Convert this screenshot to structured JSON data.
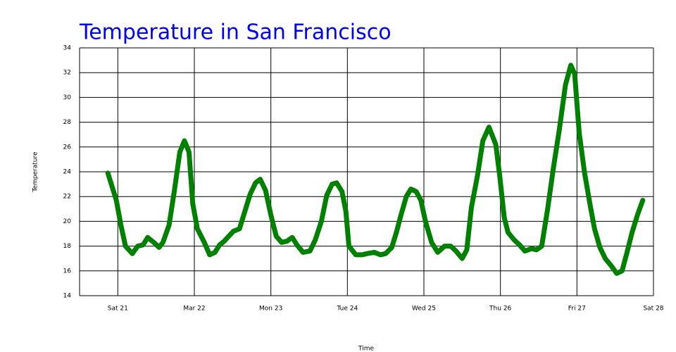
{
  "chart_data": {
    "type": "line",
    "title": "Temperature in San Francisco",
    "xlabel": "Time",
    "ylabel": "Temperature",
    "xlim": [
      20.5,
      28
    ],
    "xticks": [
      {
        "value": 21,
        "label": "Sat 21"
      },
      {
        "value": 22,
        "label": "Mar 22"
      },
      {
        "value": 23,
        "label": "Mon 23"
      },
      {
        "value": 24,
        "label": "Tue 24"
      },
      {
        "value": 25,
        "label": "Wed 25"
      },
      {
        "value": 26,
        "label": "Thu 26"
      },
      {
        "value": 27,
        "label": "Fri 27"
      },
      {
        "value": 28,
        "label": "Sat 28"
      }
    ],
    "ylim": [
      14,
      34
    ],
    "yticks": [
      14,
      16,
      18,
      20,
      22,
      24,
      26,
      28,
      30,
      32,
      34
    ],
    "grid": true,
    "x": [
      20.87,
      20.98,
      21.04,
      21.1,
      21.19,
      21.26,
      21.33,
      21.39,
      21.47,
      21.54,
      21.59,
      21.67,
      21.74,
      21.81,
      21.87,
      21.93,
      21.98,
      22.04,
      22.13,
      22.2,
      22.27,
      22.33,
      22.39,
      22.45,
      22.51,
      22.59,
      22.66,
      22.73,
      22.8,
      22.86,
      22.93,
      23.0,
      23.07,
      23.14,
      23.21,
      23.28,
      23.34,
      23.42,
      23.51,
      23.58,
      23.66,
      23.73,
      23.8,
      23.86,
      23.93,
      23.98,
      24.02,
      24.11,
      24.19,
      24.26,
      24.35,
      24.43,
      24.5,
      24.58,
      24.64,
      24.7,
      24.77,
      24.83,
      24.9,
      24.96,
      25.02,
      25.1,
      25.18,
      25.27,
      25.35,
      25.42,
      25.5,
      25.56,
      25.62,
      25.7,
      25.77,
      25.85,
      25.94,
      25.99,
      26.05,
      26.1,
      26.18,
      26.25,
      26.32,
      26.41,
      26.47,
      26.54,
      26.62,
      26.69,
      26.77,
      26.85,
      26.92,
      26.97,
      27.03,
      27.1,
      27.17,
      27.23,
      27.3,
      27.37,
      27.45,
      27.52,
      27.59,
      27.65,
      27.72,
      27.79,
      27.86
    ],
    "series": [
      {
        "name": "Temperature",
        "color": "#008000",
        "values": [
          23.9,
          21.7,
          19.7,
          18.0,
          17.4,
          18.0,
          18.1,
          18.7,
          18.3,
          17.9,
          18.3,
          19.7,
          22.5,
          25.6,
          26.5,
          25.6,
          21.4,
          19.4,
          18.3,
          17.3,
          17.5,
          18.1,
          18.4,
          18.8,
          19.2,
          19.4,
          20.8,
          22.2,
          23.1,
          23.4,
          22.5,
          20.5,
          18.8,
          18.3,
          18.4,
          18.7,
          18.1,
          17.5,
          17.6,
          18.5,
          20.0,
          22.1,
          23.0,
          23.1,
          22.4,
          20.8,
          18.0,
          17.3,
          17.3,
          17.4,
          17.5,
          17.3,
          17.4,
          17.9,
          19.1,
          20.5,
          22.0,
          22.6,
          22.4,
          21.7,
          20.0,
          18.3,
          17.5,
          18.0,
          18.0,
          17.6,
          17.0,
          17.7,
          21.1,
          23.7,
          26.5,
          27.6,
          26.2,
          23.7,
          20.3,
          19.1,
          18.5,
          18.1,
          17.6,
          17.8,
          17.7,
          18.0,
          21.1,
          24.2,
          27.4,
          31.0,
          32.6,
          31.9,
          27.1,
          23.9,
          21.4,
          19.4,
          17.9,
          17.0,
          16.4,
          15.8,
          16.0,
          17.4,
          19.1,
          20.5,
          21.7
        ]
      }
    ]
  }
}
